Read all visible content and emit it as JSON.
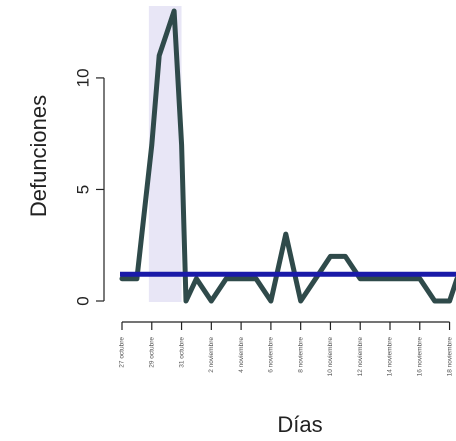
{
  "chart_data": {
    "type": "line",
    "title": "",
    "xlabel": "Días",
    "ylabel": "Defunciones",
    "x_tick_labels": [
      "27 octubre",
      "29 octubre",
      "31 octubre",
      "2 noviembre",
      "4 noviembre",
      "6 noviembre",
      "8 noviembre",
      "10 noviembre",
      "12 noviembre",
      "14 noviembre",
      "16 noviembre",
      "18 noviembre"
    ],
    "y_ticks": [
      0,
      5,
      10
    ],
    "ylim": [
      0,
      13
    ],
    "x_day_range": [
      0,
      22.5
    ],
    "highlight_band": {
      "from_day": 1,
      "to_day": 4,
      "color": "#e8e6f6"
    },
    "series": [
      {
        "color": "#2f4a4a",
        "x_days": [
          0,
          1,
          2,
          2.5,
          3,
          3.5,
          4,
          4.3,
          5,
          6,
          7,
          8,
          9,
          10,
          11,
          12,
          13,
          14,
          15,
          16,
          17,
          18,
          19,
          20,
          21,
          22,
          22.5
        ],
        "values": [
          1,
          1,
          7,
          11,
          12,
          13,
          7,
          0,
          1,
          0,
          1,
          1,
          1,
          0,
          3,
          0,
          1,
          2,
          2,
          1,
          1,
          1,
          1,
          1,
          0,
          0,
          1
        ]
      }
    ],
    "reference_line": {
      "value": 1.2,
      "color": "#1a1aa8"
    }
  }
}
